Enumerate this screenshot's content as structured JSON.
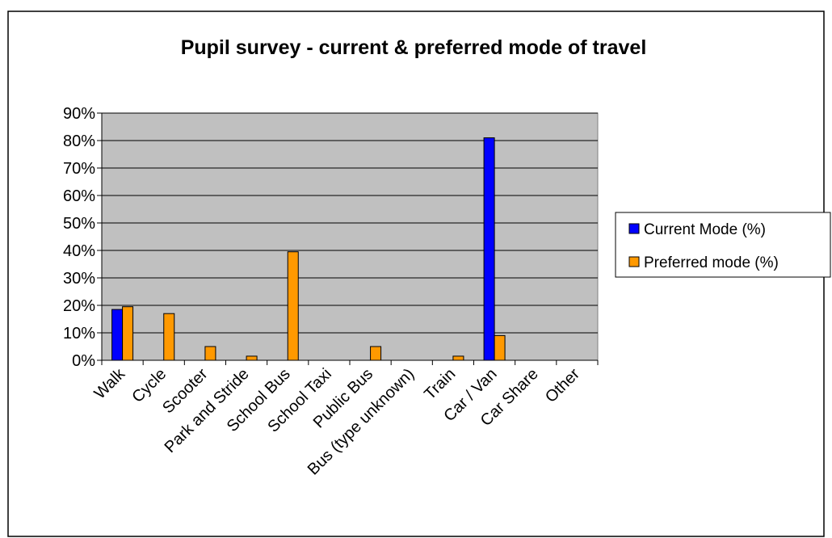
{
  "chart_data": {
    "type": "bar",
    "title": "Pupil survey - current & preferred mode of travel",
    "xlabel": "",
    "ylabel": "",
    "categories": [
      "Walk",
      "Cycle",
      "Scooter",
      "Park and Stride",
      "School Bus",
      "School Taxi",
      "Public Bus",
      "Bus (type unknown)",
      "Train",
      "Car / Van",
      "Car Share",
      "Other"
    ],
    "series": [
      {
        "name": "Current Mode (%)",
        "color": "#0000ff",
        "values": [
          18.5,
          0,
          0,
          0,
          0,
          0,
          0,
          0,
          0,
          81,
          0,
          0
        ]
      },
      {
        "name": "Preferred mode (%)",
        "color": "#ff9900",
        "values": [
          19.5,
          17,
          5,
          1.5,
          39.5,
          0,
          5,
          0,
          1.5,
          9,
          0,
          0
        ]
      }
    ],
    "yticks": [
      "0%",
      "10%",
      "20%",
      "30%",
      "40%",
      "50%",
      "60%",
      "70%",
      "80%",
      "90%"
    ],
    "ylim": [
      0,
      90
    ],
    "grid": true,
    "plot_background": "#c0c0c0",
    "legend": "right"
  }
}
